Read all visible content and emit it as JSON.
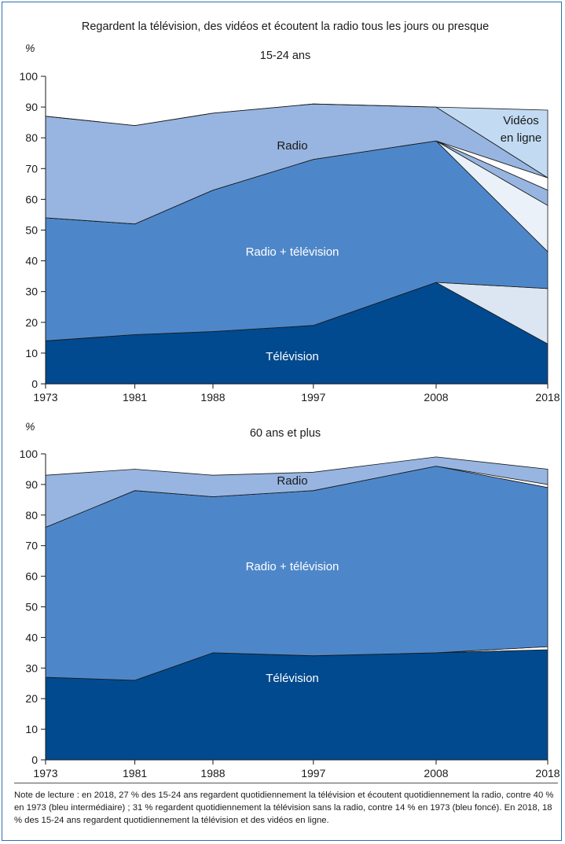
{
  "title": "Regardent la télévision, des vidéos et écoutent la radio tous les jours ou presque",
  "colors": {
    "television": "#014a8f",
    "radio_tv": "#4e87c9",
    "radio": "#97b5e0",
    "video_light": "#dbe6f2",
    "video_lightest": "#c2dbf2",
    "white_band": "#ffffff"
  },
  "chart_data": [
    {
      "type": "area",
      "title": "15-24 ans",
      "ylabel": "%",
      "ylim": [
        0,
        100
      ],
      "y_ticks": [
        0,
        10,
        20,
        30,
        40,
        50,
        60,
        70,
        80,
        90,
        100
      ],
      "x": [
        1973,
        1981,
        1988,
        1997,
        2008,
        2018
      ],
      "series": [
        {
          "name": "Télévision",
          "color": "#014a8f",
          "values": [
            14,
            16,
            17,
            19,
            33,
            13
          ]
        },
        {
          "name": "",
          "color": "#dbe6f2",
          "values": [
            0,
            0,
            0,
            0,
            0,
            18
          ]
        },
        {
          "name": "Radio + télévision",
          "color": "#4e87c9",
          "values": [
            40,
            36,
            46,
            54,
            46,
            12
          ]
        },
        {
          "name": "",
          "color": "#ebf1f9",
          "values": [
            0,
            0,
            0,
            0,
            0,
            15
          ]
        },
        {
          "name": "",
          "color": "#97b5e0",
          "values": [
            0,
            0,
            0,
            0,
            0,
            5
          ]
        },
        {
          "name": "",
          "color": "#ffffff",
          "values": [
            0,
            0,
            0,
            0,
            0,
            4
          ]
        },
        {
          "name": "Radio",
          "color": "#97b5e0",
          "values": [
            33,
            32,
            25,
            18,
            11,
            0
          ]
        },
        {
          "name": "Vidéos en ligne",
          "color": "#c2dbf2",
          "values": [
            0,
            0,
            0,
            0,
            0,
            22
          ]
        }
      ],
      "annotations": {
        "television": "Télévision",
        "radio_tv": "Radio  + télévision",
        "radio": "Radio",
        "videos_line1": "Vidéos",
        "videos_line2": "en ligne"
      }
    },
    {
      "type": "area",
      "title": "60 ans et plus",
      "ylabel": "%",
      "ylim": [
        0,
        100
      ],
      "y_ticks": [
        0,
        10,
        20,
        30,
        40,
        50,
        60,
        70,
        80,
        90,
        100
      ],
      "x": [
        1973,
        1981,
        1988,
        1997,
        2008,
        2018
      ],
      "series": [
        {
          "name": "Télévision",
          "color": "#014a8f",
          "values": [
            27,
            26,
            35,
            34,
            35,
            36
          ]
        },
        {
          "name": "",
          "color": "#ffffff",
          "values": [
            0,
            0,
            0,
            0,
            0,
            1
          ]
        },
        {
          "name": "Radio + télévision",
          "color": "#4e87c9",
          "values": [
            49,
            62,
            51,
            54,
            61,
            52
          ]
        },
        {
          "name": "",
          "color": "#ffffff",
          "values": [
            0,
            0,
            0,
            0,
            0,
            1
          ]
        },
        {
          "name": "Radio",
          "color": "#97b5e0",
          "values": [
            17,
            7,
            7,
            6,
            3,
            5
          ]
        }
      ],
      "annotations": {
        "television": "Télévision",
        "radio_tv": "Radio  + télévision",
        "radio": "Radio"
      }
    }
  ],
  "note": "Note de lecture : en 2018, 27 % des 15-24 ans regardent quotidiennement la télévision et écoutent quotidiennement la radio, contre 40 % en 1973 (bleu intermédiaire) ; 31 % regardent quotidiennement la télévision sans la radio, contre 14 % en 1973 (bleu foncé). En 2018, 18 % des 15-24 ans regardent quotidiennement la télévision et des vidéos en ligne."
}
